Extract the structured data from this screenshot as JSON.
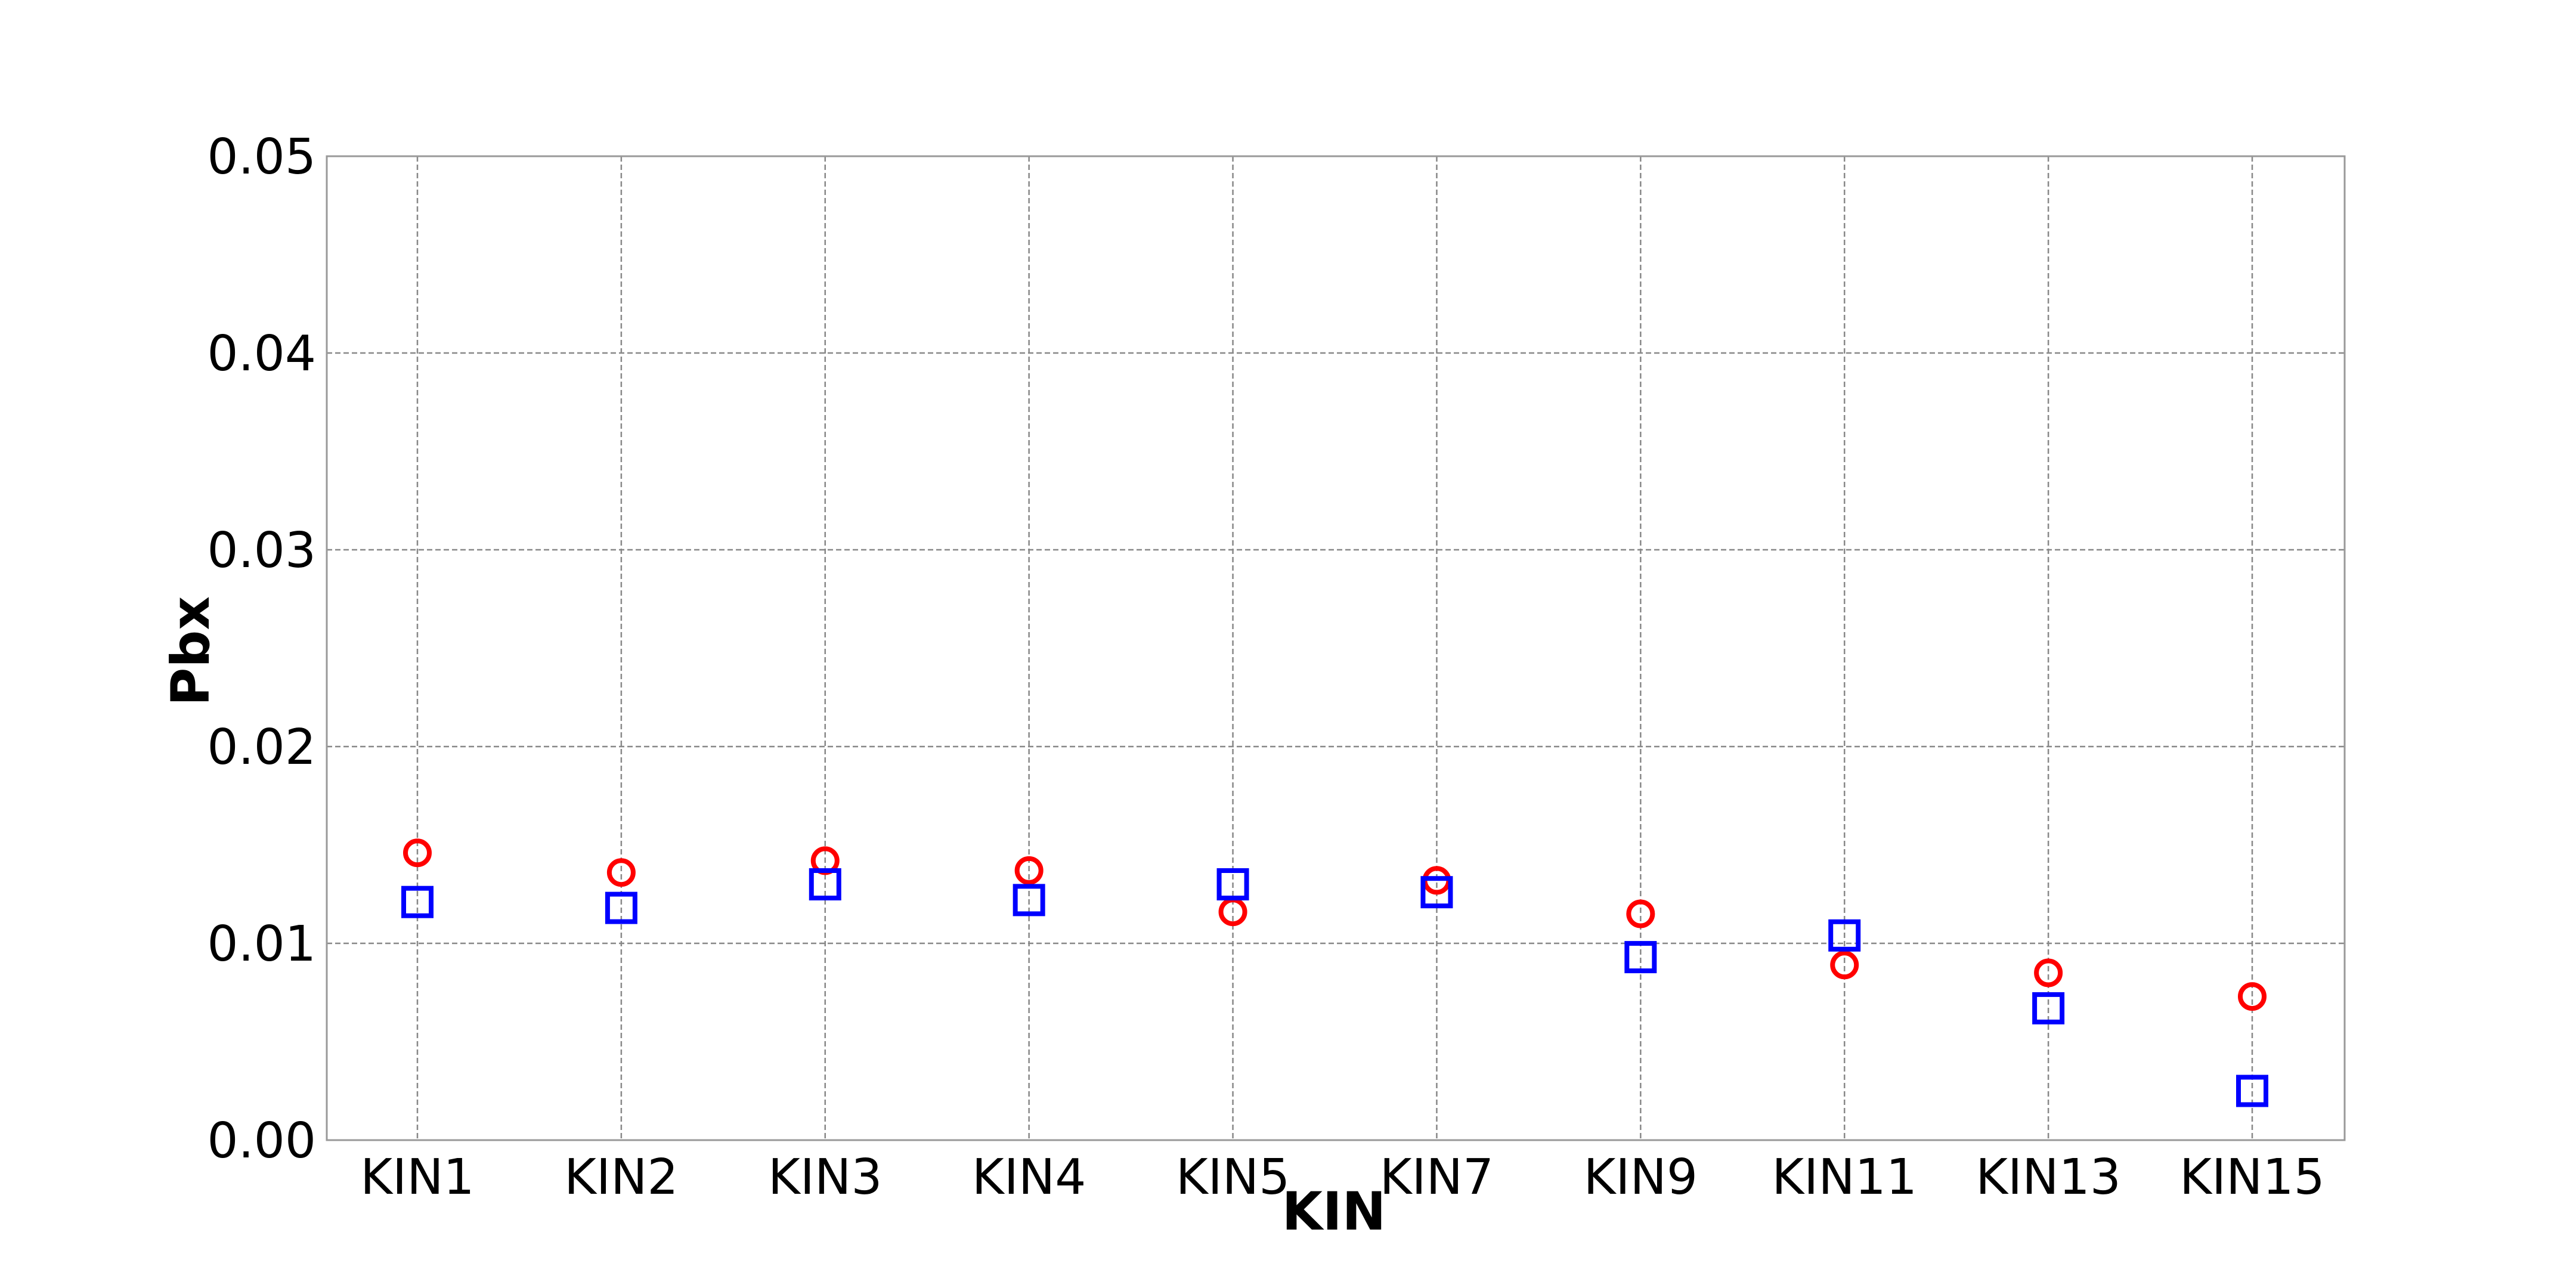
{
  "chart_data": {
    "type": "scatter",
    "title": "",
    "xlabel": "KIN",
    "ylabel": "Pbx",
    "categories": [
      "KIN1",
      "KIN2",
      "KIN3",
      "KIN4",
      "KIN5",
      "KIN7",
      "KIN9",
      "KIN11",
      "KIN13",
      "KIN15"
    ],
    "ylim": [
      0.0,
      0.05
    ],
    "yticks": [
      "0.00",
      "0.01",
      "0.02",
      "0.03",
      "0.04",
      "0.05"
    ],
    "grid": true,
    "series": [
      {
        "marker": "circle",
        "color": "#ff0000",
        "values": [
          0.0146,
          0.0136,
          0.0142,
          0.0137,
          0.0116,
          0.0132,
          0.0115,
          0.0089,
          0.0085,
          0.0073
        ]
      },
      {
        "marker": "square",
        "color": "#0000ff",
        "values": [
          0.0121,
          0.0118,
          0.013,
          0.0122,
          0.013,
          0.0126,
          0.0093,
          0.0104,
          0.0067,
          0.0025
        ]
      }
    ]
  }
}
